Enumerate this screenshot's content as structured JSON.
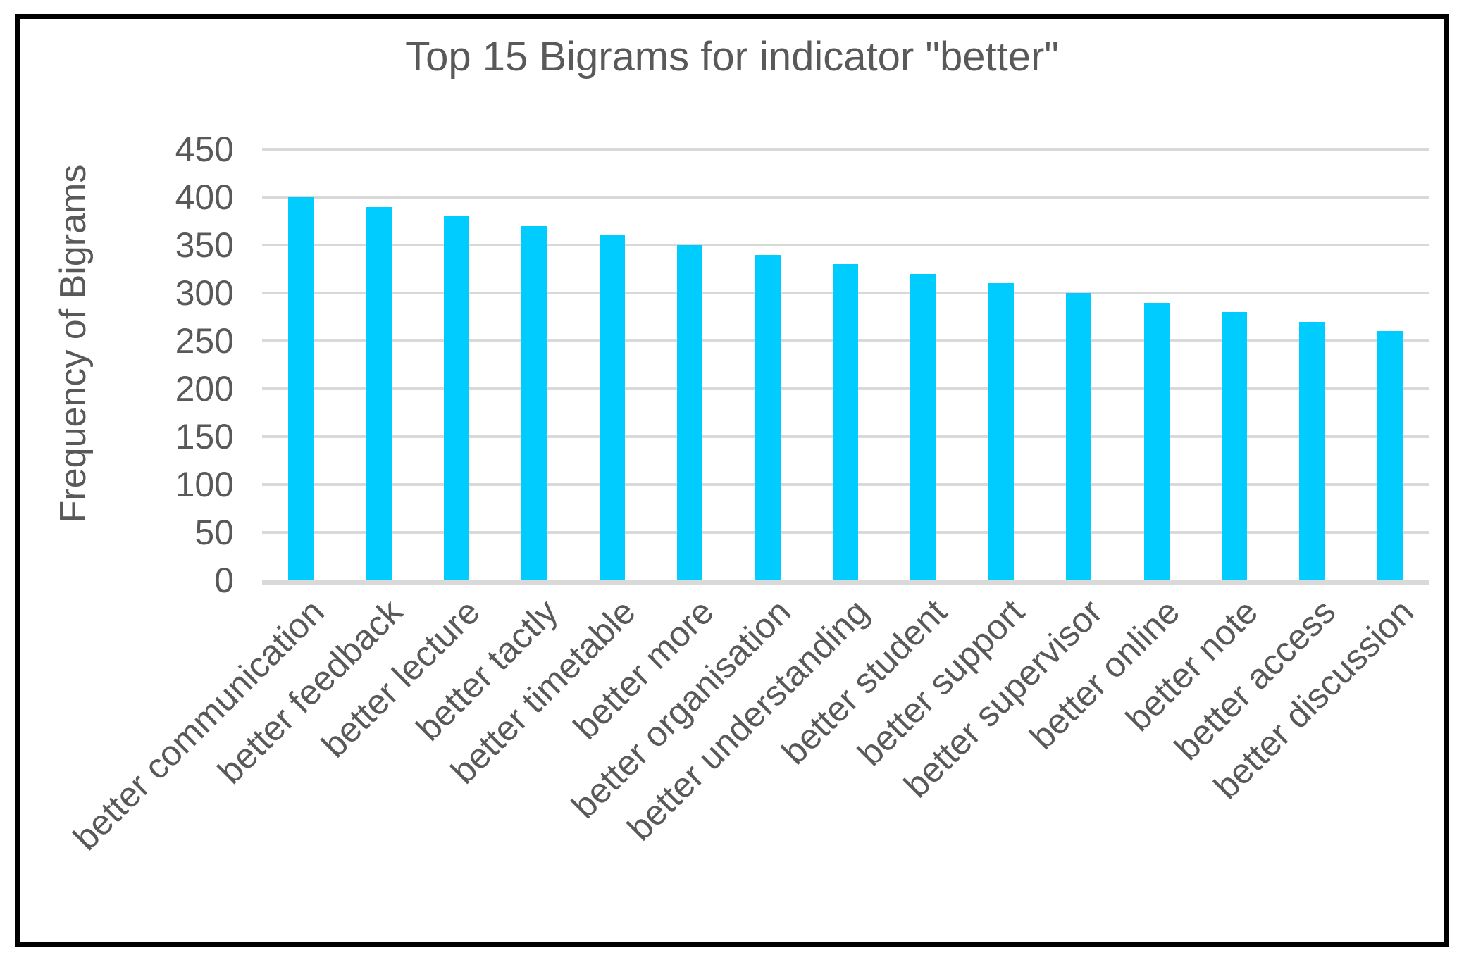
{
  "chart": {
    "title": "Top 15 Bigrams for indicator \"better\"",
    "y_axis_title": "Frequency of Bigrams"
  },
  "chart_data": {
    "type": "bar",
    "title": "Top 15 Bigrams for indicator \"better\"",
    "xlabel": "",
    "ylabel": "Frequency of Bigrams",
    "categories": [
      "better communication",
      "better feedback",
      "better lecture",
      "better tactly",
      "better timetable",
      "better more",
      "better organisation",
      "better understanding",
      "better student",
      "better support",
      "better supervisor",
      "better online",
      "better note",
      "better access",
      "better discussion"
    ],
    "values": [
      400,
      390,
      380,
      370,
      360,
      350,
      340,
      330,
      320,
      310,
      300,
      290,
      280,
      270,
      260
    ],
    "ylim": [
      0,
      450
    ],
    "yticks": [
      0,
      50,
      100,
      150,
      200,
      250,
      300,
      350,
      400,
      450
    ],
    "grid": true,
    "legend_position": "none",
    "x_label_rotation_degrees": 45,
    "bar_color": "#00CCFF",
    "gridline_color": "#D9D9D9",
    "text_color": "#595959",
    "frame_color": "#000000"
  }
}
